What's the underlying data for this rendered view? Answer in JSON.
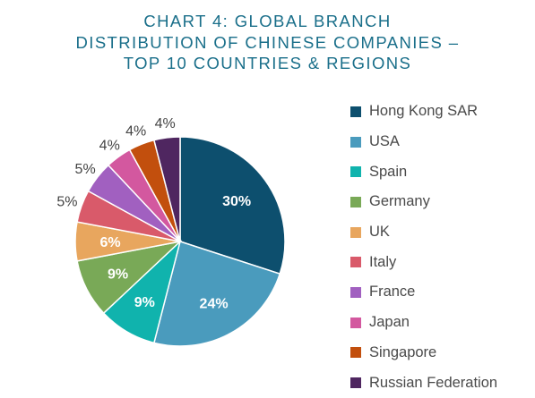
{
  "chart_data": {
    "type": "pie",
    "title_lines": [
      "CHART 4: GLOBAL BRANCH",
      "DISTRIBUTION OF CHINESE COMPANIES –",
      "TOP 10 COUNTRIES & REGIONS"
    ],
    "categories": [
      "Hong Kong SAR",
      "USA",
      "Spain",
      "Germany",
      "UK",
      "Italy",
      "France",
      "Japan",
      "Singapore",
      "Russian Federation"
    ],
    "values": [
      30,
      24,
      9,
      9,
      6,
      5,
      5,
      4,
      4,
      4
    ],
    "data_labels": [
      "30%",
      "24%",
      "9%",
      "9%",
      "6%",
      "5%",
      "5%",
      "4%",
      "4%",
      "4%"
    ],
    "colors": [
      "#0d4f6e",
      "#4a9bbd",
      "#10b3ad",
      "#79a957",
      "#e8a65e",
      "#d95a6a",
      "#a160c0",
      "#d3589f",
      "#c24f0d",
      "#4f2660"
    ],
    "label_colors": [
      "#ffffff",
      "#ffffff",
      "#ffffff",
      "#ffffff",
      "#ffffff",
      "#444444",
      "#444444",
      "#444444",
      "#444444",
      "#444444"
    ],
    "legend_position": "right",
    "start_angle": "12 o'clock",
    "direction": "clockwise"
  }
}
